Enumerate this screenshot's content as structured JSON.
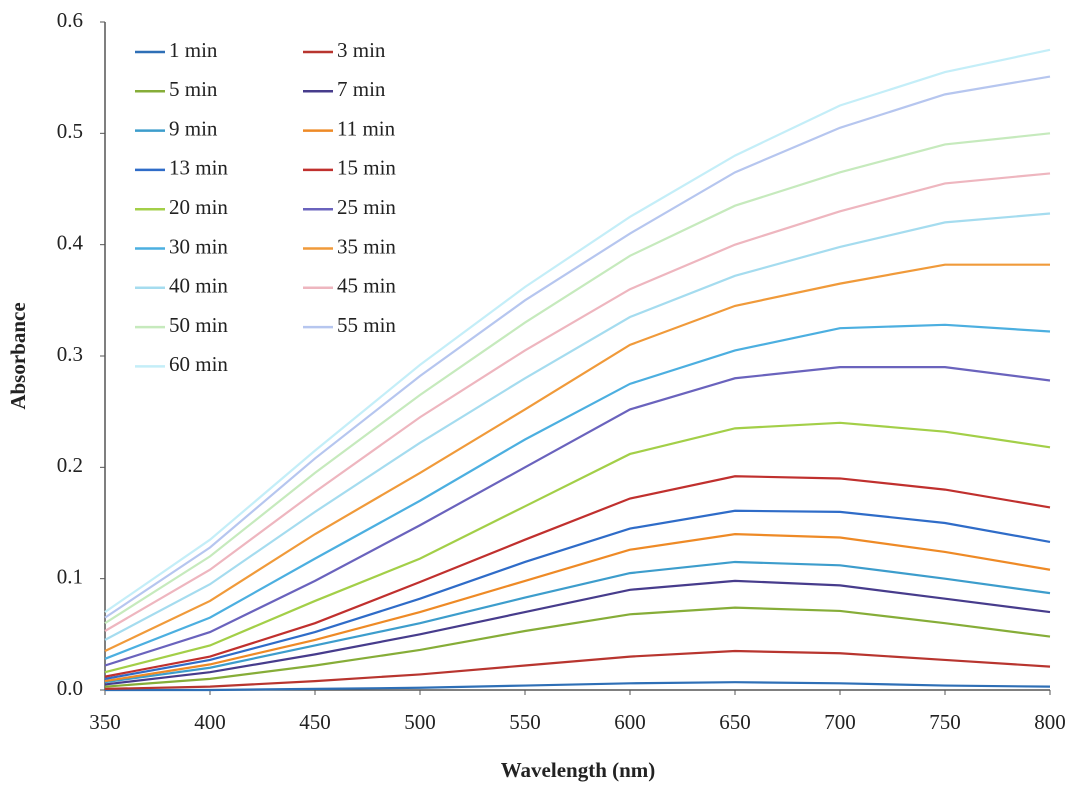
{
  "chart_data": {
    "type": "line",
    "x_label": "Wavelength (nm)",
    "y_label": "Absorbance",
    "x": [
      350,
      400,
      450,
      500,
      550,
      600,
      650,
      700,
      750,
      800
    ],
    "xlim": [
      350,
      800
    ],
    "xticks": [
      350,
      400,
      450,
      500,
      550,
      600,
      650,
      700,
      750,
      800
    ],
    "ylim": [
      0,
      0.6
    ],
    "yticks": [
      {
        "value": 0,
        "label": "0.0"
      },
      {
        "value": 0.1,
        "label": "0.1"
      },
      {
        "value": 0.2,
        "label": "0.2"
      },
      {
        "value": 0.3,
        "label": "0.3"
      },
      {
        "value": 0.4,
        "label": "0.4"
      },
      {
        "value": 0.5,
        "label": "0.5"
      },
      {
        "value": 0.6,
        "label": "0.6"
      }
    ],
    "legend": "upper left",
    "series": [
      {
        "name": "1 min",
        "color": "#2e6fb6",
        "values": [
          0,
          0,
          0.001,
          0.002,
          0.004,
          0.006,
          0.007,
          0.006,
          0.004,
          0.003
        ]
      },
      {
        "name": "3 min",
        "color": "#b8352f",
        "values": [
          0.001,
          0.003,
          0.008,
          0.014,
          0.022,
          0.03,
          0.035,
          0.033,
          0.027,
          0.021
        ]
      },
      {
        "name": "5 min",
        "color": "#86ad38",
        "values": [
          0.003,
          0.01,
          0.022,
          0.036,
          0.053,
          0.068,
          0.074,
          0.071,
          0.06,
          0.048
        ]
      },
      {
        "name": "7 min",
        "color": "#473c8c",
        "values": [
          0.005,
          0.016,
          0.032,
          0.05,
          0.07,
          0.09,
          0.098,
          0.094,
          0.082,
          0.07
        ]
      },
      {
        "name": "9 min",
        "color": "#3d9dcc",
        "values": [
          0.007,
          0.02,
          0.04,
          0.06,
          0.083,
          0.105,
          0.115,
          0.112,
          0.1,
          0.087
        ]
      },
      {
        "name": "11 min",
        "color": "#ee8a26",
        "values": [
          0.008,
          0.023,
          0.045,
          0.07,
          0.098,
          0.126,
          0.14,
          0.137,
          0.124,
          0.108
        ]
      },
      {
        "name": "13 min",
        "color": "#2f6cc8",
        "values": [
          0.01,
          0.027,
          0.052,
          0.082,
          0.115,
          0.145,
          0.161,
          0.16,
          0.15,
          0.133
        ]
      },
      {
        "name": "15 min",
        "color": "#c0302e",
        "values": [
          0.012,
          0.03,
          0.06,
          0.097,
          0.135,
          0.172,
          0.192,
          0.19,
          0.18,
          0.164
        ]
      },
      {
        "name": "20 min",
        "color": "#a3cf48",
        "values": [
          0.016,
          0.04,
          0.08,
          0.118,
          0.165,
          0.212,
          0.235,
          0.24,
          0.232,
          0.218
        ]
      },
      {
        "name": "25 min",
        "color": "#6a63bd",
        "values": [
          0.022,
          0.052,
          0.098,
          0.148,
          0.2,
          0.252,
          0.28,
          0.29,
          0.29,
          0.278
        ]
      },
      {
        "name": "30 min",
        "color": "#4cafe0",
        "values": [
          0.028,
          0.065,
          0.118,
          0.17,
          0.225,
          0.275,
          0.305,
          0.325,
          0.328,
          0.322
        ]
      },
      {
        "name": "35 min",
        "color": "#f09a3a",
        "values": [
          0.035,
          0.08,
          0.14,
          0.195,
          0.252,
          0.31,
          0.345,
          0.365,
          0.382,
          0.382
        ]
      },
      {
        "name": "40 min",
        "color": "#a5dcef",
        "values": [
          0.045,
          0.095,
          0.16,
          0.222,
          0.28,
          0.335,
          0.372,
          0.398,
          0.42,
          0.428
        ]
      },
      {
        "name": "45 min",
        "color": "#eeb6bf",
        "values": [
          0.053,
          0.108,
          0.178,
          0.245,
          0.305,
          0.36,
          0.4,
          0.43,
          0.455,
          0.464
        ]
      },
      {
        "name": "50 min",
        "color": "#c6eabd",
        "values": [
          0.06,
          0.12,
          0.195,
          0.265,
          0.33,
          0.39,
          0.435,
          0.465,
          0.49,
          0.5
        ]
      },
      {
        "name": "55 min",
        "color": "#b6c6ef",
        "values": [
          0.065,
          0.128,
          0.208,
          0.282,
          0.35,
          0.41,
          0.465,
          0.505,
          0.535,
          0.551
        ]
      },
      {
        "name": "60 min",
        "color": "#c4eef8",
        "values": [
          0.07,
          0.135,
          0.215,
          0.292,
          0.362,
          0.425,
          0.48,
          0.525,
          0.555,
          0.575
        ]
      }
    ]
  }
}
